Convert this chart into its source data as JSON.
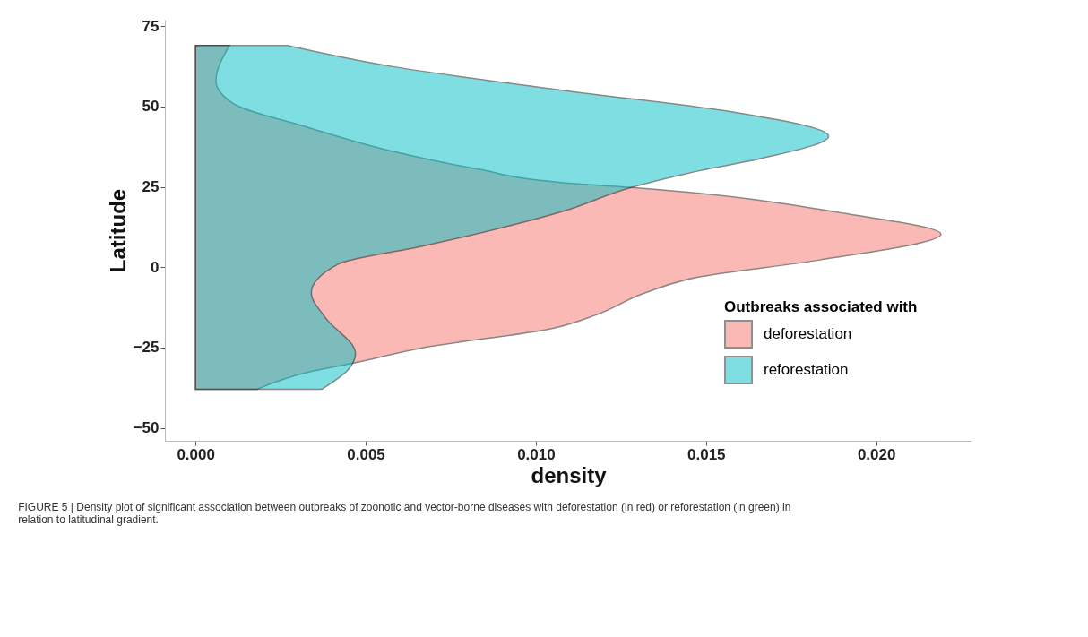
{
  "chart_data": {
    "type": "area",
    "orientation": "horizontal",
    "xlabel": "density",
    "ylabel": "Latitude",
    "legend_title": "Outbreaks associated with",
    "legend": "bottom right",
    "grid": false,
    "xlim": [
      -0.0009,
      0.0228
    ],
    "xticks": [
      {
        "value": 0,
        "label": "0.000"
      },
      0.005,
      {
        "value": 0.01,
        "label": "0.010"
      },
      0.015,
      {
        "value": 0.02,
        "label": "0.020"
      }
    ],
    "ylim": [
      -54,
      77
    ],
    "yticks": [
      -50,
      -25,
      0,
      25,
      50,
      75
    ],
    "series": [
      {
        "name": "deforestation",
        "color": "#f8766d",
        "x": [
          69,
          58,
          51,
          43.5,
          36,
          30.5,
          26.3,
          24.8,
          16.5,
          10.3,
          2.2,
          -3,
          -8,
          -14.7,
          -19,
          -25,
          -29.7,
          -32.7,
          -38
        ],
        "values": [
          0.001,
          0.0006,
          0.0011,
          0.0033,
          0.0058,
          0.0083,
          0.0108,
          0.0128,
          0.0192,
          0.0219,
          0.0183,
          0.0148,
          0.0132,
          0.0118,
          0.0105,
          0.0067,
          0.0047,
          0.0033,
          0.0018
        ]
      },
      {
        "name": "reforestation",
        "color": "#00bfc4",
        "x": [
          69,
          62.4,
          55,
          48.4,
          40.8,
          33.8,
          30,
          24.8,
          17.4,
          6.6,
          1,
          -8,
          -15.5,
          -26.8,
          -31.7,
          -38
        ],
        "values": [
          0.0027,
          0.0058,
          0.0108,
          0.0157,
          0.0186,
          0.0166,
          0.0148,
          0.0128,
          0.0108,
          0.0067,
          0.0042,
          0.0034,
          0.0038,
          0.0047,
          0.0045,
          0.0037
        ]
      }
    ],
    "annotations": [
      "FIGURE 5 | Density plot of significant association between outbreaks of zoonotic and vector-borne diseases with deforestation (in red) or reforestation (in green) in relation to latitudinal gradient."
    ]
  }
}
